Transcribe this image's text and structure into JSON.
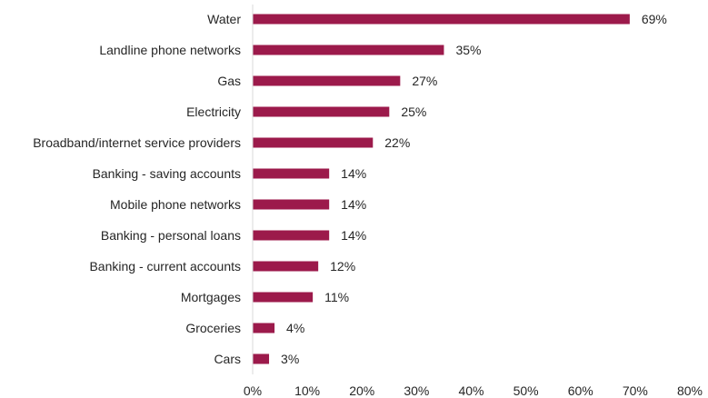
{
  "chart_data": {
    "type": "bar",
    "orientation": "horizontal",
    "categories": [
      "Water",
      "Landline phone networks",
      "Gas",
      "Electricity",
      "Broadband/internet service providers",
      "Banking - saving accounts",
      "Mobile phone networks",
      "Banking - personal loans",
      "Banking - current accounts",
      "Mortgages",
      "Groceries",
      "Cars"
    ],
    "values": [
      69,
      35,
      27,
      25,
      22,
      14,
      14,
      14,
      12,
      11,
      4,
      3
    ],
    "value_labels": [
      "69%",
      "35%",
      "27%",
      "25%",
      "22%",
      "14%",
      "14%",
      "14%",
      "12%",
      "11%",
      "4%",
      "3%"
    ],
    "xlim": [
      0,
      80
    ],
    "xticks": [
      0,
      10,
      20,
      30,
      40,
      50,
      60,
      70,
      80
    ],
    "xtick_labels": [
      "0%",
      "10%",
      "20%",
      "30%",
      "40%",
      "50%",
      "60%",
      "70%",
      "80%"
    ],
    "title": "",
    "xlabel": "",
    "ylabel": "",
    "grid": false,
    "legend": "none",
    "bar_color": "#9c1a4b",
    "axis_color": "#d9d9d9",
    "text_color": "#262626"
  }
}
